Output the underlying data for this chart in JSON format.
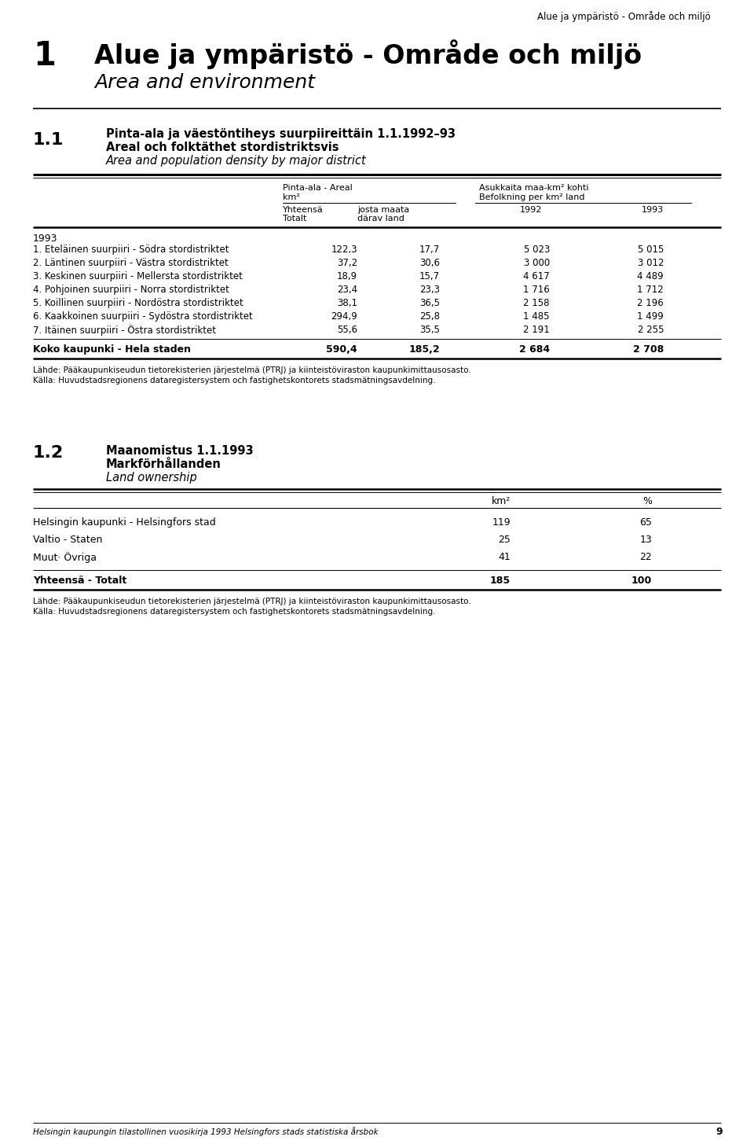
{
  "page_header": "Alue ja ympäristö - Område och miljö",
  "chapter_number": "1",
  "chapter_title_bold": "Alue ja ympäristö - Område och miljö",
  "chapter_title_italic": "Area and environment",
  "section_number": "1.1",
  "section_title_line1": "Pinta-ala ja väestöntiheys suurpiireittäin 1.1.1992–93",
  "section_title_line2": "Areal och folktäthet stordistriktsvis",
  "section_title_line3": "Area and population density by major district",
  "col_header_1a": "Pinta-ala - Areal",
  "col_header_1b": "km²",
  "col_header_2a": "Asukkaita maa-km² kohti",
  "col_header_2b": "Befolkning per km² land",
  "year_label": "1993",
  "rows": [
    {
      "label": "1. Eteläinen suurpiiri - Södra stordistriktet",
      "v1": "122,3",
      "v2": "17,7",
      "v3": "5 023",
      "v4": "5 015"
    },
    {
      "label": "2. Läntinen suurpiiri - Västra stordistriktet",
      "v1": "37,2",
      "v2": "30,6",
      "v3": "3 000",
      "v4": "3 012"
    },
    {
      "label": "3. Keskinen suurpiiri - Mellersta stordistriktet",
      "v1": "18,9",
      "v2": "15,7",
      "v3": "4 617",
      "v4": "4 489"
    },
    {
      "label": "4. Pohjoinen suurpiiri - Norra stordistriktet",
      "v1": "23,4",
      "v2": "23,3",
      "v3": "1 716",
      "v4": "1 712"
    },
    {
      "label": "5. Koillinen suurpiiri - Nordöstra stordistriktet",
      "v1": "38,1",
      "v2": "36,5",
      "v3": "2 158",
      "v4": "2 196"
    },
    {
      "label": "6. Kaakkoinen suurpiiri - Sydöstra stordistriktet",
      "v1": "294,9",
      "v2": "25,8",
      "v3": "1 485",
      "v4": "1 499"
    },
    {
      "label": "7. Itäinen suurpiiri - Östra stordistriktet",
      "v1": "55,6",
      "v2": "35,5",
      "v3": "2 191",
      "v4": "2 255"
    }
  ],
  "total_label": "Koko kaupunki - Hela staden",
  "total_v1": "590,4",
  "total_v2": "185,2",
  "total_v3": "2 684",
  "total_v4": "2 708",
  "source_fi": "Lähde: Pääkaupunkiseudun tietorekisterien järjestelmä (PTRJ) ja kiinteistöviraston kaupunkimittausosasto.",
  "source_sv": "Källa: Huvudstadsregionens dataregistersystem och fastighetskontorets stadsmätningsavdelning.",
  "section2_number": "1.2",
  "section2_title_line1": "Maanomistus 1.1.1993",
  "section2_title_line2": "Markförhållanden",
  "section2_title_line3": "Land ownership",
  "col2_header1": "km²",
  "col2_header2": "%",
  "rows2": [
    {
      "label": "Helsingin kaupunki - Helsingfors stad",
      "v1": "119",
      "v2": "65"
    },
    {
      "label": "Valtio - Staten",
      "v1": "25",
      "v2": "13"
    },
    {
      "label": "Muut· Övriga",
      "v1": "41",
      "v2": "22"
    }
  ],
  "total2_label": "Yhteensä - Totalt",
  "total2_v1": "185",
  "total2_v2": "100",
  "source2_fi": "Lähde: Pääkaupunkiseudun tietorekisterien järjestelmä (PTRJ) ja kiinteistöviraston kaupunkimittausosasto.",
  "source2_sv": "Källa: Huvudstadsregionens dataregistersystem och fastighetskontorets stadsmätningsavdelning.",
  "footer": "Helsingin kaupungin tilastollinen vuosikirja 1993 Helsingfors stads statistiska årsbok",
  "footer_page": "9"
}
